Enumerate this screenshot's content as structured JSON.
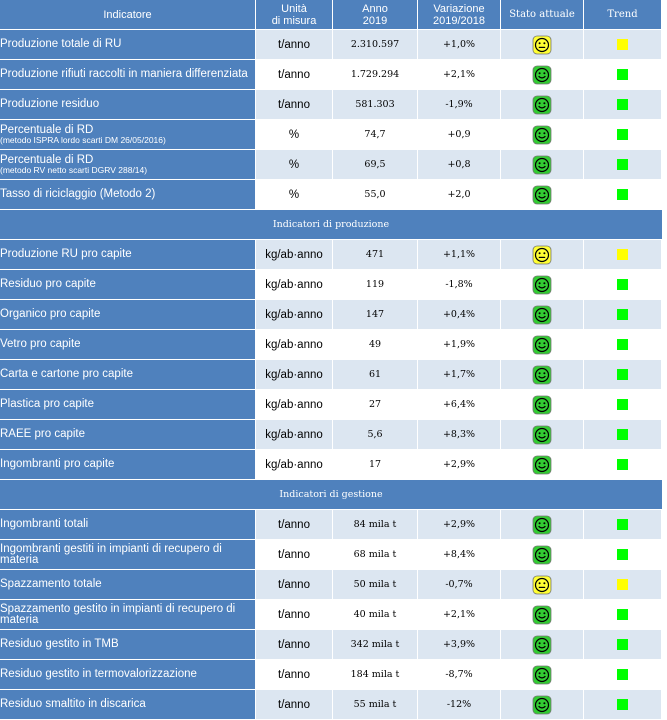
{
  "columns": {
    "indicator": "Indicatore",
    "unit_line1": "Unità",
    "unit_line2": "di misura",
    "year_line1": "Anno",
    "year_line2": "2019",
    "var_line1": "Variazione",
    "var_line2": "2019/2018",
    "status": "Stato attuale",
    "trend": "Trend"
  },
  "colors": {
    "header_blue": "#4f81bd",
    "row_light": "#dce6f1",
    "good_green": "#00ff00",
    "warn_yellow": "#ffff00",
    "face_green": "#33cc33",
    "face_yellow": "#ffff33"
  },
  "sections": [
    {
      "title": "",
      "rows": [
        {
          "name": "Produzione totale di RU",
          "note": "",
          "unit": "t/anno",
          "value": "2.310.597",
          "change": "+1,0%",
          "status": "neutral",
          "trend": "yellow"
        },
        {
          "name": "Produzione rifiuti raccolti in maniera differenziata",
          "note": "",
          "unit": "t/anno",
          "value": "1.729.294",
          "change": "+2,1%",
          "status": "happy",
          "trend": "green"
        },
        {
          "name": "Produzione residuo",
          "note": "",
          "unit": "t/anno",
          "value": "581.303",
          "change": "-1,9%",
          "status": "happy",
          "trend": "green"
        },
        {
          "name": "Percentuale di RD",
          "note": "(metodo ISPRA lordo scarti DM 26/05/2016)",
          "unit": "%",
          "value": "74,7",
          "change": "+0,9",
          "status": "happy",
          "trend": "green"
        },
        {
          "name": "Percentuale di RD",
          "note": "(metodo RV netto scarti DGRV 288/14)",
          "unit": "%",
          "value": "69,5",
          "change": "+0,8",
          "status": "happy",
          "trend": "green"
        },
        {
          "name": "Tasso di riciclaggio (Metodo 2)",
          "note": "",
          "unit": "%",
          "value": "55,0",
          "change": "+2,0",
          "status": "happy",
          "trend": "green"
        }
      ]
    },
    {
      "title": "Indicatori di produzione",
      "rows": [
        {
          "name": "Produzione RU pro capite",
          "note": "",
          "unit": "kg/ab·anno",
          "value": "471",
          "change": "+1,1%",
          "status": "neutral",
          "trend": "yellow"
        },
        {
          "name": "Residuo pro capite",
          "note": "",
          "unit": "kg/ab·anno",
          "value": "119",
          "change": "-1,8%",
          "status": "happy",
          "trend": "green"
        },
        {
          "name": "Organico pro capite",
          "note": "",
          "unit": "kg/ab·anno",
          "value": "147",
          "change": "+0,4%",
          "status": "happy",
          "trend": "green"
        },
        {
          "name": "Vetro pro capite",
          "note": "",
          "unit": "kg/ab·anno",
          "value": "49",
          "change": "+1,9%",
          "status": "happy",
          "trend": "green"
        },
        {
          "name": "Carta e cartone pro capite",
          "note": "",
          "unit": "kg/ab·anno",
          "value": "61",
          "change": "+1,7%",
          "status": "happy",
          "trend": "green"
        },
        {
          "name": "Plastica pro capite",
          "note": "",
          "unit": "kg/ab·anno",
          "value": "27",
          "change": "+6,4%",
          "status": "happy",
          "trend": "green"
        },
        {
          "name": "RAEE pro capite",
          "note": "",
          "unit": "kg/ab·anno",
          "value": "5,6",
          "change": "+8,3%",
          "status": "happy",
          "trend": "green"
        },
        {
          "name": "Ingombranti pro capite",
          "note": "",
          "unit": "kg/ab·anno",
          "value": "17",
          "change": "+2,9%",
          "status": "happy",
          "trend": "green"
        }
      ]
    },
    {
      "title": "Indicatori di gestione",
      "rows": [
        {
          "name": "Ingombranti totali",
          "note": "",
          "unit": "t/anno",
          "value": "84 mila t",
          "change": "+2,9%",
          "status": "happy",
          "trend": "green"
        },
        {
          "name": "Ingombranti gestiti in impianti di recupero di materia",
          "note": "",
          "unit": "t/anno",
          "value": "68 mila t",
          "change": "+8,4%",
          "status": "happy",
          "trend": "green"
        },
        {
          "name": "Spazzamento totale",
          "note": "",
          "unit": "t/anno",
          "value": "50 mila t",
          "change": "-0,7%",
          "status": "neutral",
          "trend": "yellow"
        },
        {
          "name": "Spazzamento gestito in impianti di recupero di materia",
          "note": "",
          "unit": "t/anno",
          "value": "40 mila t",
          "change": "+2,1%",
          "status": "happy",
          "trend": "green"
        },
        {
          "name": "Residuo gestito in TMB",
          "note": "",
          "unit": "t/anno",
          "value": "342 mila t",
          "change": "+3,9%",
          "status": "happy",
          "trend": "green"
        },
        {
          "name": "Residuo gestito in termovalorizzazione",
          "note": "",
          "unit": "t/anno",
          "value": "184 mila t",
          "change": "-8,7%",
          "status": "happy",
          "trend": "green"
        },
        {
          "name": "Residuo smaltito in discarica",
          "note": "",
          "unit": "t/anno",
          "value": "55 mila t",
          "change": "-12%",
          "status": "happy",
          "trend": "green"
        }
      ]
    }
  ]
}
